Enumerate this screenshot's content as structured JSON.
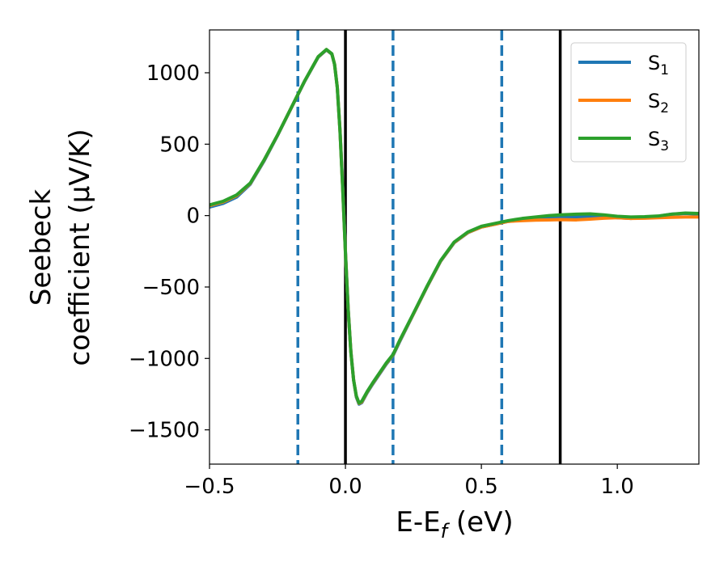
{
  "chart_data": {
    "type": "line",
    "xlabel_main": "E-E",
    "xlabel_sub": "f",
    "xlabel_tail": " (eV)",
    "ylabel_line1": "Seebeck",
    "ylabel_line2": "coefficient  (μV/K)",
    "xlim": [
      -0.5,
      1.3
    ],
    "ylim": [
      -1740,
      1300
    ],
    "xticks": [
      {
        "value": -0.5,
        "label": "−0.5"
      },
      {
        "value": 0.0,
        "label": "0.0"
      },
      {
        "value": 0.5,
        "label": "0.5"
      },
      {
        "value": 1.0,
        "label": "1.0"
      }
    ],
    "yticks": [
      {
        "value": 1000,
        "label": "1000"
      },
      {
        "value": 500,
        "label": "500"
      },
      {
        "value": 0,
        "label": "0"
      },
      {
        "value": -500,
        "label": "−500"
      },
      {
        "value": -1000,
        "label": "−1000"
      },
      {
        "value": -1500,
        "label": "−1500"
      }
    ],
    "vlines_dashed": {
      "x": [
        -0.175,
        0.175,
        0.575
      ],
      "color": "#1f77b4"
    },
    "vlines_solid": {
      "x": [
        0.0,
        0.79
      ],
      "color": "#000000"
    },
    "legend_position": "top-right",
    "series": [
      {
        "name": "S",
        "subscript": "1",
        "color": "#1f77b4",
        "x": [
          -0.5,
          -0.45,
          -0.4,
          -0.35,
          -0.3,
          -0.25,
          -0.2,
          -0.15,
          -0.1,
          -0.07,
          -0.05,
          -0.04,
          -0.03,
          -0.02,
          -0.01,
          0.0,
          0.01,
          0.02,
          0.03,
          0.04,
          0.05,
          0.06,
          0.08,
          0.1,
          0.15,
          0.175,
          0.2,
          0.25,
          0.3,
          0.35,
          0.4,
          0.45,
          0.5,
          0.55,
          0.575,
          0.6,
          0.65,
          0.7,
          0.75,
          0.79,
          0.85,
          0.9,
          0.95,
          1.0,
          1.05,
          1.1,
          1.15,
          1.2,
          1.25,
          1.3
        ],
        "y": [
          60,
          85,
          130,
          220,
          380,
          560,
          750,
          940,
          1110,
          1160,
          1130,
          1060,
          900,
          600,
          200,
          -250,
          -650,
          -950,
          -1150,
          -1270,
          -1320,
          -1310,
          -1240,
          -1180,
          -1040,
          -980,
          -880,
          -690,
          -500,
          -320,
          -190,
          -120,
          -80,
          -60,
          -50,
          -40,
          -30,
          -25,
          -20,
          -15,
          -10,
          -5,
          -8,
          -15,
          -20,
          -12,
          -5,
          10,
          15,
          10
        ]
      },
      {
        "name": "S",
        "subscript": "2",
        "color": "#ff7f0e",
        "x": [
          -0.5,
          -0.45,
          -0.4,
          -0.35,
          -0.3,
          -0.25,
          -0.2,
          -0.15,
          -0.1,
          -0.07,
          -0.05,
          -0.04,
          -0.03,
          -0.02,
          -0.01,
          0.0,
          0.01,
          0.02,
          0.03,
          0.04,
          0.05,
          0.06,
          0.08,
          0.1,
          0.15,
          0.175,
          0.2,
          0.25,
          0.3,
          0.35,
          0.4,
          0.45,
          0.5,
          0.55,
          0.575,
          0.6,
          0.65,
          0.7,
          0.75,
          0.79,
          0.85,
          0.9,
          0.95,
          1.0,
          1.05,
          1.1,
          1.15,
          1.2,
          1.25,
          1.3
        ],
        "y": [
          70,
          95,
          140,
          225,
          385,
          562,
          752,
          942,
          1112,
          1162,
          1132,
          1060,
          898,
          595,
          190,
          -260,
          -655,
          -955,
          -1150,
          -1265,
          -1315,
          -1305,
          -1235,
          -1175,
          -1035,
          -975,
          -875,
          -688,
          -498,
          -318,
          -188,
          -118,
          -80,
          -60,
          -50,
          -40,
          -35,
          -32,
          -30,
          -28,
          -30,
          -25,
          -18,
          -15,
          -20,
          -18,
          -15,
          -12,
          -10,
          -10
        ]
      },
      {
        "name": "S",
        "subscript": "3",
        "color": "#2ca02c",
        "x": [
          -0.5,
          -0.45,
          -0.4,
          -0.35,
          -0.3,
          -0.25,
          -0.2,
          -0.15,
          -0.1,
          -0.07,
          -0.05,
          -0.04,
          -0.03,
          -0.02,
          -0.01,
          0.0,
          0.01,
          0.02,
          0.03,
          0.04,
          0.05,
          0.06,
          0.08,
          0.1,
          0.15,
          0.175,
          0.2,
          0.25,
          0.3,
          0.35,
          0.4,
          0.45,
          0.5,
          0.55,
          0.575,
          0.6,
          0.65,
          0.7,
          0.75,
          0.79,
          0.85,
          0.9,
          0.95,
          1.0,
          1.05,
          1.1,
          1.15,
          1.2,
          1.25,
          1.3
        ],
        "y": [
          75,
          100,
          145,
          228,
          387,
          563,
          753,
          943,
          1113,
          1163,
          1133,
          1058,
          895,
          590,
          185,
          -265,
          -660,
          -958,
          -1152,
          -1262,
          -1312,
          -1300,
          -1232,
          -1172,
          -1032,
          -972,
          -872,
          -685,
          -495,
          -315,
          -185,
          -115,
          -75,
          -55,
          -45,
          -35,
          -20,
          -10,
          0,
          5,
          10,
          12,
          5,
          -5,
          -10,
          -8,
          -3,
          10,
          18,
          15
        ]
      }
    ]
  }
}
